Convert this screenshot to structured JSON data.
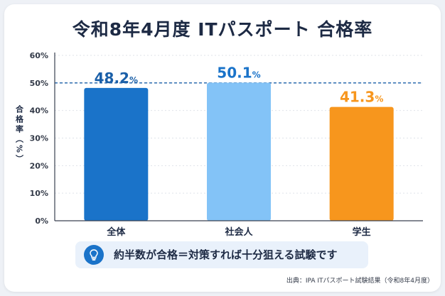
{
  "title": "令和8年4月度 ITパスポート 合格率",
  "callout": {
    "icon": "lightbulb-icon",
    "text": "約半数が合格＝対策すれば十分狙える試験です"
  },
  "source": "出典：IPA ITパスポート試験結果（令和8年4月度）",
  "colors": {
    "navy": "#1d2a44",
    "blue": "#1a73c9",
    "light_blue": "#83c3f7",
    "orange": "#f7961d",
    "callout_bg": "#e9f1fb"
  },
  "chart_data": {
    "type": "bar",
    "title": "令和8年4月度 ITパスポート 合格率",
    "xlabel": "",
    "ylabel": "合格率（%）",
    "categories": [
      "全体",
      "社会人",
      "学生"
    ],
    "values": [
      48.2,
      50.1,
      41.3
    ],
    "value_labels": [
      "48.2%",
      "50.1%",
      "41.3%"
    ],
    "bar_colors": [
      "#1a73c9",
      "#83c3f7",
      "#f7961d"
    ],
    "label_colors": [
      "#1a5fa8",
      "#1a73c9",
      "#f7961d"
    ],
    "ylim": [
      0,
      60
    ],
    "yticks": [
      0,
      10,
      20,
      30,
      40,
      50,
      60
    ],
    "ytick_labels": [
      "0%",
      "10%",
      "20%",
      "30%",
      "40%",
      "50%",
      "60%"
    ],
    "reference_line": 50,
    "grid": true,
    "legend": "none"
  }
}
